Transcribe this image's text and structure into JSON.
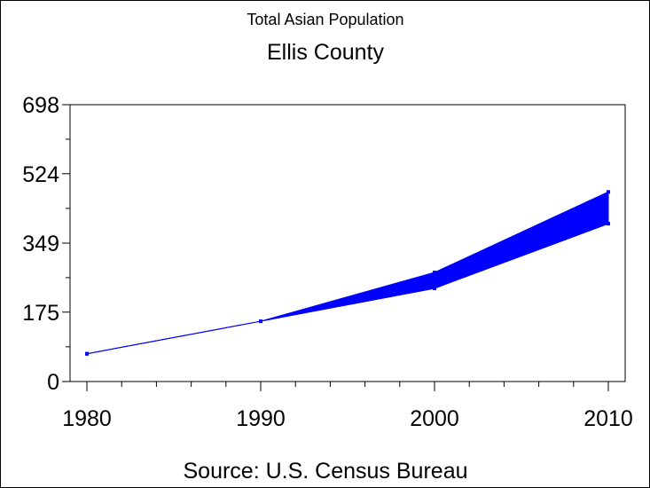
{
  "chart_data": {
    "type": "area",
    "title": "Total Asian Population",
    "subtitle": "Ellis County",
    "source": "Source: U.S. Census Bureau",
    "xlabel": "",
    "ylabel": "",
    "x": [
      1980,
      1990,
      2000,
      2010
    ],
    "x_tick_labels": [
      "1980",
      "1990",
      "2000",
      "2010"
    ],
    "y_tick_labels": [
      "0",
      "175",
      "349",
      "524",
      "698"
    ],
    "xlim": [
      1980,
      2010
    ],
    "ylim": [
      0,
      698
    ],
    "grid": false,
    "series": [
      {
        "values": [
          70,
          152,
          275,
          478
        ]
      },
      {
        "values": [
          70,
          152,
          235,
          398
        ]
      }
    ],
    "colors": {
      "series": "#0000ff",
      "axis": "#000000",
      "background": "#ffffff"
    }
  }
}
